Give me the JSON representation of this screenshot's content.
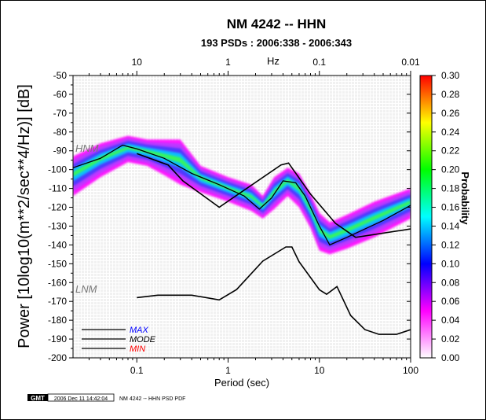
{
  "chart_data": {
    "type": "heatmap",
    "title": "NM 4242 -- HHN",
    "subtitle": "193 PSDs : 2006:338 - 2006:343",
    "xlabel": "Period (sec)",
    "ylabel": "Power [10log10(m**2/sec**4/Hz)] [dB]",
    "top_axis_label": "Hz",
    "colorbar_label": "Probability",
    "x_scale": "log",
    "xlim": [
      0.02,
      100
    ],
    "ylim": [
      -200,
      -50
    ],
    "x_ticks": [
      {
        "value": 0.1,
        "label": "0.1"
      },
      {
        "value": 1,
        "label": "1"
      },
      {
        "value": 10,
        "label": "10"
      },
      {
        "value": 100,
        "label": "100"
      }
    ],
    "top_ticks": [
      {
        "value": 0.1,
        "label": "10"
      },
      {
        "value": 1,
        "label": "1"
      },
      {
        "value": 10,
        "label": "0.1"
      },
      {
        "value": 100,
        "label": "0.01"
      }
    ],
    "y_ticks": [
      -50,
      -60,
      -70,
      -80,
      -90,
      -100,
      -110,
      -120,
      -130,
      -140,
      -150,
      -160,
      -170,
      -180,
      -190,
      -200
    ],
    "colorbar_ticks": [
      "0.00",
      "0.02",
      "0.04",
      "0.06",
      "0.08",
      "0.10",
      "0.12",
      "0.14",
      "0.16",
      "0.18",
      "0.20",
      "0.22",
      "0.24",
      "0.26",
      "0.28",
      "0.30"
    ],
    "colorbar_range": [
      0,
      0.3
    ],
    "colorbar_colors": [
      "#ffffff",
      "#ff00ff",
      "#0000ff",
      "#00ffff",
      "#00ff00",
      "#ffff00",
      "#ff0000"
    ],
    "reference_models": [
      {
        "name": "HNM",
        "color": "#888888",
        "points": [
          [
            0.1,
            -91.5
          ],
          [
            0.22,
            -97.5
          ],
          [
            0.32,
            -106
          ],
          [
            0.8,
            -120
          ],
          [
            3.8,
            -97.5
          ],
          [
            4.6,
            -96.5
          ],
          [
            8,
            -113
          ],
          [
            15,
            -128.5
          ],
          [
            25,
            -136
          ],
          [
            100,
            -131.5
          ]
        ]
      },
      {
        "name": "LNM",
        "color": "#888888",
        "points": [
          [
            0.1,
            -168
          ],
          [
            0.17,
            -166.7
          ],
          [
            0.4,
            -166.7
          ],
          [
            0.8,
            -169.2
          ],
          [
            1.24,
            -163.7
          ],
          [
            2.4,
            -148.6
          ],
          [
            4.3,
            -141.1
          ],
          [
            5,
            -141.1
          ],
          [
            6,
            -149
          ],
          [
            10,
            -163.8
          ],
          [
            12,
            -166.2
          ],
          [
            15.6,
            -162.1
          ],
          [
            22,
            -177.5
          ],
          [
            31.6,
            -185
          ],
          [
            45,
            -187.5
          ],
          [
            70,
            -187.5
          ],
          [
            100,
            -185
          ]
        ]
      }
    ],
    "mode_line": [
      [
        0.02,
        -99
      ],
      [
        0.04,
        -94
      ],
      [
        0.07,
        -87
      ],
      [
        0.1,
        -89
      ],
      [
        0.2,
        -94
      ],
      [
        0.4,
        -102
      ],
      [
        0.8,
        -108
      ],
      [
        1.5,
        -114
      ],
      [
        2.2,
        -121
      ],
      [
        3,
        -115
      ],
      [
        4,
        -106
      ],
      [
        5.5,
        -107
      ],
      [
        7,
        -114
      ],
      [
        10,
        -130
      ],
      [
        13,
        -140
      ],
      [
        20,
        -136
      ],
      [
        50,
        -127
      ],
      [
        100,
        -119
      ]
    ],
    "pdf_band": [
      {
        "x": 0.02,
        "upper": -93,
        "lower": -114
      },
      {
        "x": 0.04,
        "upper": -86,
        "lower": -104
      },
      {
        "x": 0.08,
        "upper": -82,
        "lower": -96
      },
      {
        "x": 0.13,
        "upper": -84,
        "lower": -98
      },
      {
        "x": 0.2,
        "upper": -84,
        "lower": -103
      },
      {
        "x": 0.3,
        "upper": -84,
        "lower": -108
      },
      {
        "x": 0.5,
        "upper": -98,
        "lower": -112
      },
      {
        "x": 1,
        "upper": -104,
        "lower": -117
      },
      {
        "x": 1.8,
        "upper": -108,
        "lower": -122
      },
      {
        "x": 2.4,
        "upper": -114,
        "lower": -126
      },
      {
        "x": 3.2,
        "upper": -104,
        "lower": -121
      },
      {
        "x": 4.5,
        "upper": -99,
        "lower": -114
      },
      {
        "x": 6,
        "upper": -102,
        "lower": -120
      },
      {
        "x": 8,
        "upper": -113,
        "lower": -131
      },
      {
        "x": 10,
        "upper": -123,
        "lower": -143
      },
      {
        "x": 13,
        "upper": -128,
        "lower": -145
      },
      {
        "x": 20,
        "upper": -124,
        "lower": -142
      },
      {
        "x": 40,
        "upper": -117,
        "lower": -136
      },
      {
        "x": 100,
        "upper": -110,
        "lower": -126
      }
    ],
    "legend": {
      "placement": "bottom-left",
      "entries": [
        {
          "label": "MAX",
          "color": "#0000ff"
        },
        {
          "label": "MODE",
          "color": "#000000"
        },
        {
          "label": "MIN",
          "color": "#ff0000"
        }
      ]
    }
  },
  "footer": {
    "logo_text": "GMT",
    "timestamp": "2006 Dec 11 14:42:04",
    "caption": "NM 4242 -- HHN PSD PDF"
  }
}
